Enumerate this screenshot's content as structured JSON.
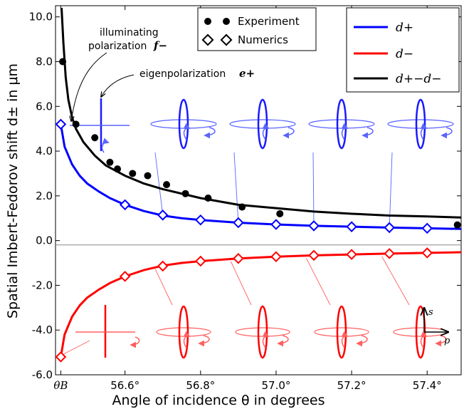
{
  "chart_data": {
    "type": "line",
    "xlabel": "Angle of incidence θ in degrees",
    "ylabel": "Spatial Imbert-Fedorov shift d± in μm",
    "xlim": [
      56.416,
      57.49
    ],
    "ylim": [
      -6.0,
      10.5
    ],
    "x_ticks": [
      {
        "value": 56.43,
        "label": "θB"
      },
      {
        "value": 56.6,
        "label": "56.6°"
      },
      {
        "value": 56.8,
        "label": "56.8°"
      },
      {
        "value": 57.0,
        "label": "57.0°"
      },
      {
        "value": 57.2,
        "label": "57.2°"
      },
      {
        "value": 57.4,
        "label": "57.4°"
      }
    ],
    "y_ticks": [
      {
        "value": -6.0,
        "label": "-6.0"
      },
      {
        "value": -4.0,
        "label": "-4.0"
      },
      {
        "value": -2.0,
        "label": "-2.0"
      },
      {
        "value": 0.0,
        "label": "0.0"
      },
      {
        "value": 2.0,
        "label": "2.0"
      },
      {
        "value": 4.0,
        "label": "4.0"
      },
      {
        "value": 6.0,
        "label": "6.0"
      },
      {
        "value": 8.0,
        "label": "8.0"
      },
      {
        "value": 10.0,
        "label": "10.0"
      }
    ],
    "series": [
      {
        "name": "d+",
        "color": "#0000ff",
        "x": [
          56.43,
          56.44,
          56.46,
          56.48,
          56.5,
          56.53,
          56.56,
          56.6,
          56.65,
          56.7,
          56.75,
          56.8,
          56.9,
          57.0,
          57.1,
          57.2,
          57.3,
          57.4,
          57.49
        ],
        "y": [
          5.2,
          4.2,
          3.4,
          2.9,
          2.55,
          2.2,
          1.9,
          1.6,
          1.32,
          1.12,
          1.0,
          0.92,
          0.8,
          0.72,
          0.66,
          0.62,
          0.58,
          0.55,
          0.52
        ]
      },
      {
        "name": "d−",
        "color": "#ff0000",
        "x": [
          56.43,
          56.44,
          56.46,
          56.48,
          56.5,
          56.53,
          56.56,
          56.6,
          56.65,
          56.7,
          56.75,
          56.8,
          56.9,
          57.0,
          57.1,
          57.2,
          57.3,
          57.4,
          57.49
        ],
        "y": [
          -5.2,
          -4.2,
          -3.4,
          -2.9,
          -2.55,
          -2.2,
          -1.9,
          -1.6,
          -1.32,
          -1.12,
          -1.0,
          -0.92,
          -0.8,
          -0.72,
          -0.66,
          -0.62,
          -0.58,
          -0.55,
          -0.52
        ]
      },
      {
        "name": "d+−d−",
        "color": "#000000",
        "x": [
          56.432,
          56.437,
          56.443,
          56.45,
          56.46,
          56.47,
          56.49,
          56.52,
          56.55,
          56.6,
          56.65,
          56.7,
          56.8,
          56.9,
          57.0,
          57.1,
          57.2,
          57.3,
          57.4,
          57.49
        ],
        "y": [
          10.4,
          8.8,
          7.3,
          6.3,
          5.5,
          5.0,
          4.4,
          3.8,
          3.35,
          2.9,
          2.55,
          2.3,
          1.9,
          1.6,
          1.45,
          1.3,
          1.2,
          1.12,
          1.08,
          1.03
        ]
      }
    ],
    "experiment": {
      "name": "Experiment",
      "x": [
        56.435,
        56.47,
        56.52,
        56.56,
        56.58,
        56.62,
        56.66,
        56.71,
        56.76,
        56.82,
        56.91,
        57.01,
        57.48
      ],
      "y": [
        8.0,
        5.2,
        4.6,
        3.5,
        3.2,
        3.0,
        2.9,
        2.5,
        2.1,
        1.9,
        1.5,
        1.2,
        0.7
      ]
    },
    "numerics": {
      "name": "Numerics",
      "x": [
        56.43,
        56.6,
        56.7,
        56.8,
        56.9,
        57.0,
        57.1,
        57.2,
        57.3,
        57.4
      ],
      "y_plus": [
        5.2,
        1.6,
        1.14,
        0.92,
        0.8,
        0.72,
        0.66,
        0.62,
        0.58,
        0.55
      ],
      "y_minus": [
        -5.2,
        -1.6,
        -1.14,
        -0.92,
        -0.8,
        -0.72,
        -0.66,
        -0.62,
        -0.58,
        -0.55
      ]
    },
    "legends": {
      "markers": [
        {
          "label": "Experiment"
        },
        {
          "label": "Numerics"
        }
      ],
      "lines": [
        {
          "label": "d+",
          "color": "#0000ff"
        },
        {
          "label": "d−",
          "color": "#ff0000"
        },
        {
          "label": "d+−d−",
          "color": "#000000"
        }
      ]
    },
    "annotations": {
      "illuminating_1": "illuminating",
      "illuminating_2": "polarization",
      "illuminating_vec": "f−",
      "eigen": "eigenpolarization",
      "eigen_vec": "e+",
      "axis_s": "s",
      "axis_p": "p"
    }
  }
}
